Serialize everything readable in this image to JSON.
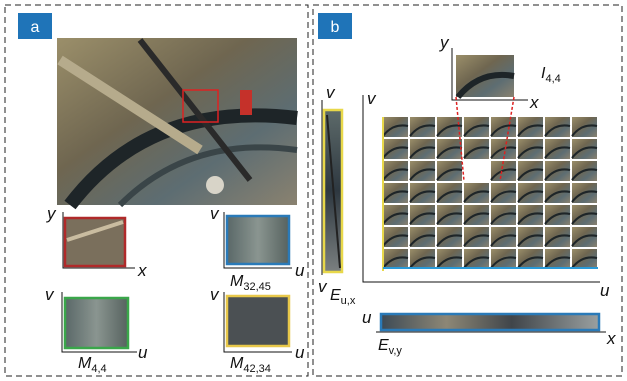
{
  "panel_a": {
    "tag": "a",
    "plots": [
      {
        "y_label": "y",
        "x_label": "x"
      },
      {
        "y_label": "v",
        "x_label": "u",
        "caption": {
          "main": "M",
          "sub": "32,45"
        }
      },
      {
        "y_label": "v",
        "x_label": "u",
        "caption": {
          "main": "M",
          "sub": "4,4"
        }
      },
      {
        "y_label": "v",
        "x_label": "u",
        "caption": {
          "main": "M",
          "sub": "42,34"
        }
      }
    ]
  },
  "panel_b": {
    "tag": "b",
    "image_axes": {
      "y": "y",
      "x": "x"
    },
    "image_caption": {
      "main": "I",
      "sub": "4,4"
    },
    "grid_axes": {
      "v": "v",
      "u": "u"
    },
    "left_strip": {
      "top_label": "v",
      "bottom_label": "v",
      "caption": {
        "main": "E",
        "sub": "u,x"
      }
    },
    "bottom_strip": {
      "left_label": "u",
      "right_label": "x",
      "caption": {
        "main": "E",
        "sub": "v,y"
      }
    }
  }
}
